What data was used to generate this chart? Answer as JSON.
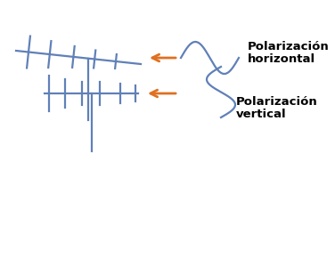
{
  "bg_color": "#ffffff",
  "antenna_color": "#6080b8",
  "arrow_color": "#e07020",
  "wave_color": "#6080b8",
  "text_color": "#000000",
  "text1_line1": "Polarización",
  "text1_line2": "horizontal",
  "text2_line1": "Polarización",
  "text2_line2": "vertical",
  "font_size": 9.5
}
